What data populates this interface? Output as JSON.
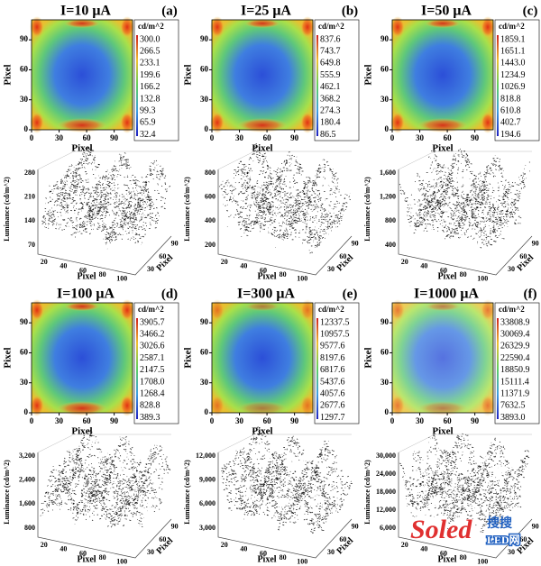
{
  "panels": [
    {
      "title": "I=10 μA",
      "tag": "(a)",
      "heatmap": {
        "xticks": [
          "0",
          "30",
          "60",
          "90"
        ],
        "yticks": [
          "0",
          "30",
          "60",
          "90"
        ],
        "xlabel": "Pixel",
        "ylabel": "Pixel",
        "colorbar_unit": "cd/m^2",
        "colorbar_ticks": [
          "300.0",
          "266.5",
          "233.1",
          "199.6",
          "166.2",
          "132.8",
          "99.3",
          "65.9",
          "32.4"
        ]
      },
      "surface": {
        "zlabel": "Luminance (cd/m^2)",
        "zticks": [
          "70",
          "140",
          "210",
          "280"
        ],
        "xticks": [
          "20",
          "40",
          "60",
          "80",
          "100"
        ],
        "yticks": [
          "30",
          "60",
          "90"
        ],
        "xlabel": "Pixel",
        "ylabel": "Pixel"
      }
    },
    {
      "title": "I=25 μA",
      "tag": "(b)",
      "heatmap": {
        "xticks": [
          "0",
          "30",
          "60",
          "90"
        ],
        "yticks": [
          "0",
          "30",
          "60",
          "90"
        ],
        "xlabel": "Pixel",
        "ylabel": "Pixel",
        "colorbar_unit": "cd/m^2",
        "colorbar_ticks": [
          "837.6",
          "743.7",
          "649.8",
          "555.9",
          "462.1",
          "368.2",
          "274.3",
          "180.4",
          "86.5"
        ]
      },
      "surface": {
        "zlabel": "Luminance (cd/m^2)",
        "zticks": [
          "200",
          "400",
          "600",
          "800"
        ],
        "xticks": [
          "20",
          "40",
          "60",
          "80",
          "100"
        ],
        "yticks": [
          "30",
          "60",
          "90"
        ],
        "xlabel": "Pixel",
        "ylabel": "Pixel"
      }
    },
    {
      "title": "I=50 μA",
      "tag": "(c)",
      "heatmap": {
        "xticks": [
          "0",
          "30",
          "60",
          "90"
        ],
        "yticks": [
          "0",
          "30",
          "60",
          "90"
        ],
        "xlabel": "Pixel",
        "ylabel": "Pixel",
        "colorbar_unit": "cd/m^2",
        "colorbar_ticks": [
          "1859.1",
          "1651.1",
          "1443.0",
          "1234.9",
          "1026.9",
          "818.8",
          "610.8",
          "402.7",
          "194.6"
        ]
      },
      "surface": {
        "zlabel": "Luminance (cd/m^2)",
        "zticks": [
          "400",
          "800",
          "1,200",
          "1,600"
        ],
        "xticks": [
          "20",
          "40",
          "60",
          "80",
          "100"
        ],
        "yticks": [
          "30",
          "60",
          "90"
        ],
        "xlabel": "Pixel",
        "ylabel": "Pixel"
      }
    },
    {
      "title": "I=100 μA",
      "tag": "(d)",
      "heatmap": {
        "xticks": [
          "0",
          "30",
          "60",
          "90"
        ],
        "yticks": [
          "0",
          "30",
          "60",
          "90"
        ],
        "xlabel": "Pixel",
        "ylabel": "Pixel",
        "colorbar_unit": "cd/m^2",
        "colorbar_ticks": [
          "3905.7",
          "3466.2",
          "3026.6",
          "2587.1",
          "2147.5",
          "1708.0",
          "1268.4",
          "828.8",
          "389.3"
        ]
      },
      "surface": {
        "zlabel": "Luminance (cd/m^2)",
        "zticks": [
          "800",
          "1,600",
          "2,400",
          "3,200"
        ],
        "xticks": [
          "20",
          "40",
          "60",
          "80",
          "100"
        ],
        "yticks": [
          "30",
          "60",
          "90"
        ],
        "xlabel": "Pixel",
        "ylabel": "Pixel"
      }
    },
    {
      "title": "I=300 μA",
      "tag": "(e)",
      "heatmap": {
        "xticks": [
          "0",
          "30",
          "60",
          "90"
        ],
        "yticks": [
          "0",
          "30",
          "60",
          "90"
        ],
        "xlabel": "Pixel",
        "ylabel": "Pixel",
        "colorbar_unit": "cd/m^2",
        "colorbar_ticks": [
          "12337.5",
          "10957.5",
          "9577.6",
          "8197.6",
          "6817.6",
          "5437.6",
          "4057.6",
          "2677.6",
          "1297.7"
        ]
      },
      "surface": {
        "zlabel": "Luminance (cd/m^2)",
        "zticks": [
          "3,000",
          "6,000",
          "9,000",
          "12,000"
        ],
        "xticks": [
          "20",
          "40",
          "60",
          "80",
          "100"
        ],
        "yticks": [
          "30",
          "60",
          "90"
        ],
        "xlabel": "Pixel",
        "ylabel": "Pixel"
      }
    },
    {
      "title": "I=1000 μA",
      "tag": "(f)",
      "heatmap": {
        "xticks": [
          "0",
          "30",
          "60",
          "90"
        ],
        "yticks": [
          "0",
          "30",
          "60",
          "90"
        ],
        "xlabel": "Pixel",
        "ylabel": "Pixel",
        "colorbar_unit": "cd/m^2",
        "colorbar_ticks": [
          "33808.9",
          "30069.4",
          "26329.9",
          "22590.4",
          "18850.9",
          "15111.4",
          "11371.9",
          "7632.5",
          "3893.0"
        ]
      },
      "surface": {
        "zlabel": "Luminance (cd/m^2)",
        "zticks": [
          "6,000",
          "12,000",
          "18,000",
          "24,000",
          "30,000"
        ],
        "xticks": [
          "20",
          "40",
          "60",
          "80",
          "100"
        ],
        "yticks": [
          "30",
          "60",
          "90"
        ],
        "xlabel": "Pixel",
        "ylabel": "Pixel"
      }
    }
  ],
  "watermark": {
    "brand": "Soled",
    "cn": "搜搜",
    "led": "LED网"
  }
}
